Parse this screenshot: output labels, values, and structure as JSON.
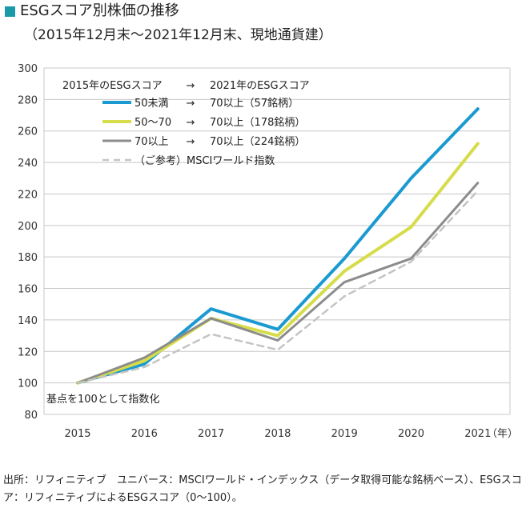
{
  "header": {
    "title": "ESGスコア別株価の推移",
    "subtitle": "（2015年12月末〜2021年12月末、現地通貨建）"
  },
  "colors": {
    "title_mark": "#1a9aa8",
    "grid": "#c8c8c8"
  },
  "chart_data": {
    "type": "line",
    "x": [
      "2015",
      "2016",
      "2017",
      "2018",
      "2019",
      "2020",
      "2021"
    ],
    "x_unit": "（年）",
    "ylim": [
      80,
      300
    ],
    "yticks": [
      80,
      100,
      120,
      140,
      160,
      180,
      200,
      220,
      240,
      260,
      280,
      300
    ],
    "grid": "horizontal",
    "legend_header": {
      "left": "2015年のESGスコア",
      "arrow": "→",
      "right": "2021年のESGスコア"
    },
    "legend_placement": "top-left",
    "series": [
      {
        "name": "50未満",
        "arrow": "→",
        "to": "70以上（57銘柄）",
        "color": "#1a9ad0",
        "style": "solid",
        "width": 4,
        "values": [
          100,
          112,
          147,
          134,
          179,
          230,
          274
        ]
      },
      {
        "name": "50〜70",
        "arrow": "→",
        "to": "70以上（178銘柄）",
        "color": "#d6dc4a",
        "style": "solid",
        "width": 4,
        "values": [
          100,
          114,
          141,
          130,
          171,
          199,
          252
        ]
      },
      {
        "name": "70以上",
        "arrow": "→",
        "to": "70以上（224銘柄）",
        "color": "#8c8c8c",
        "style": "solid",
        "width": 3,
        "values": [
          100,
          116,
          141,
          127,
          164,
          179,
          227
        ]
      },
      {
        "name": "（ご参考）MSCIワールド指数",
        "arrow": "",
        "to": "",
        "color": "#c4c4c4",
        "style": "dashed",
        "width": 2.5,
        "values": [
          100,
          110,
          131,
          121,
          155,
          177,
          222
        ]
      }
    ],
    "annotation": "基点を100として指数化"
  },
  "footer": {
    "source": "出所：リフィニティブ　ユニバース：MSCIワールド・インデックス（データ取得可能な銘柄ベース）、ESGスコア：リフィニティブによるESGスコア（0〜100）。"
  }
}
